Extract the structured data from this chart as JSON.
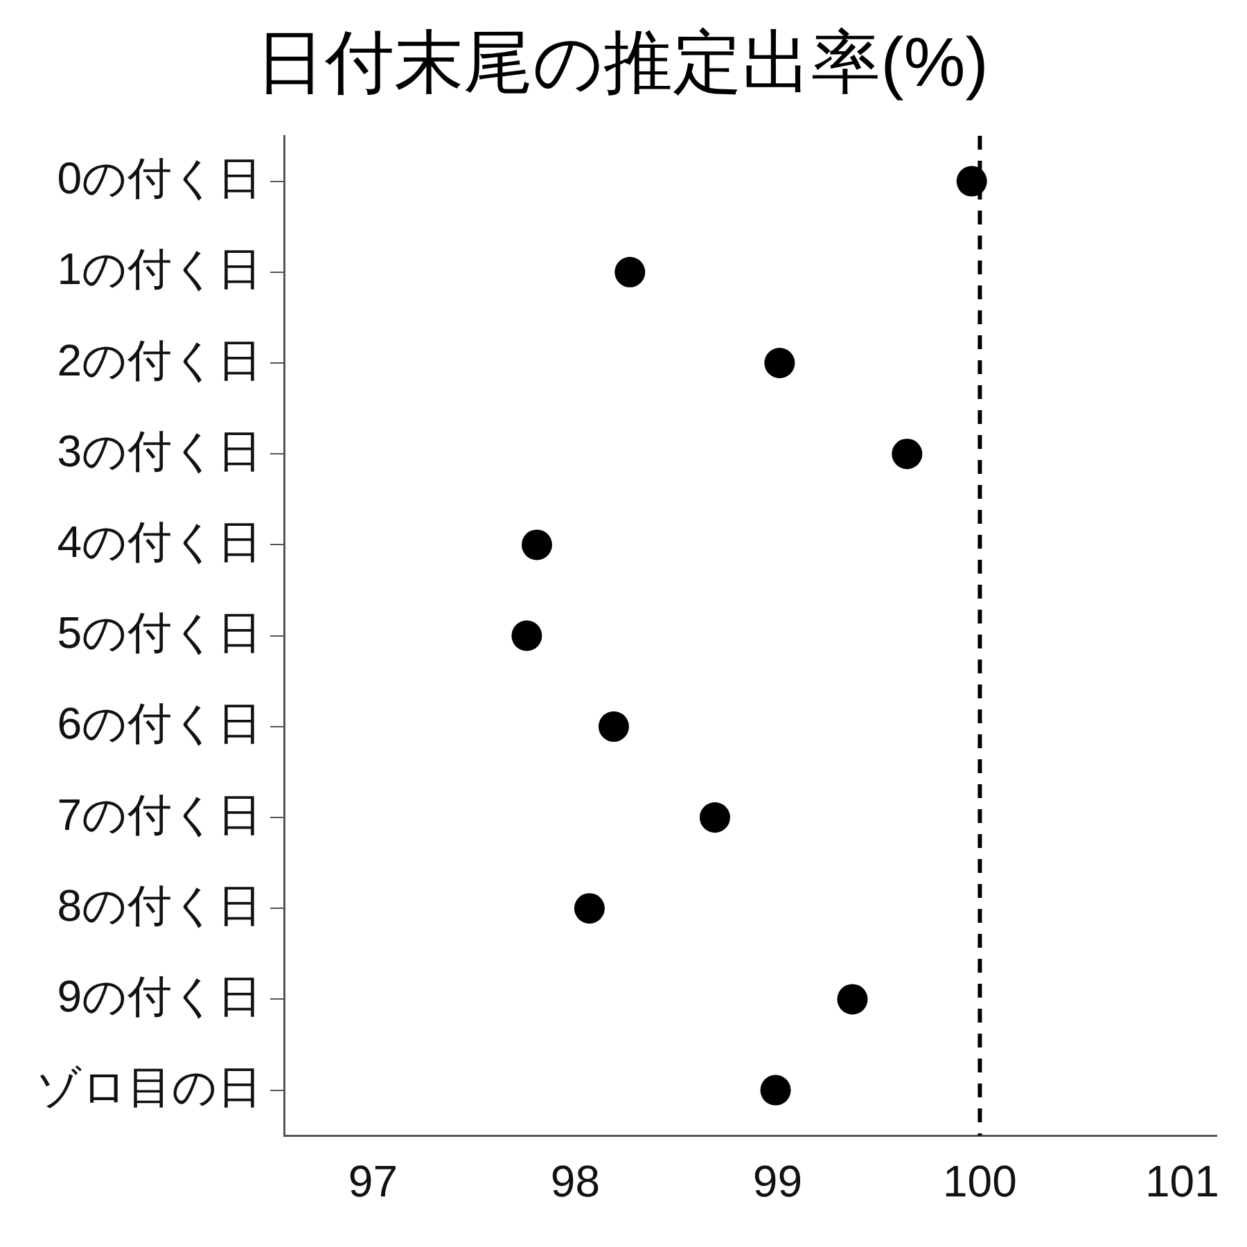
{
  "chart_data": {
    "type": "scatter",
    "orientation": "horizontal",
    "title": "日付末尾の推定出率(%)",
    "categories": [
      "0の付く日",
      "1の付く日",
      "2の付く日",
      "3の付く日",
      "4の付く日",
      "5の付く日",
      "6の付く日",
      "7の付く日",
      "8の付く日",
      "9の付く日",
      "ゾロ目の日"
    ],
    "values": [
      99.96,
      98.27,
      99.01,
      99.64,
      97.81,
      97.76,
      98.19,
      98.69,
      98.07,
      99.37,
      98.99
    ],
    "color": "#000000",
    "marker": "circle",
    "grid": false,
    "legend": false,
    "xlim": [
      96.56,
      101.17
    ],
    "xticks": [
      97,
      98,
      99,
      100,
      101
    ],
    "ref_lines": [
      {
        "axis": "x",
        "value": 100,
        "line_style": "dashed",
        "color": "#000000"
      }
    ]
  }
}
